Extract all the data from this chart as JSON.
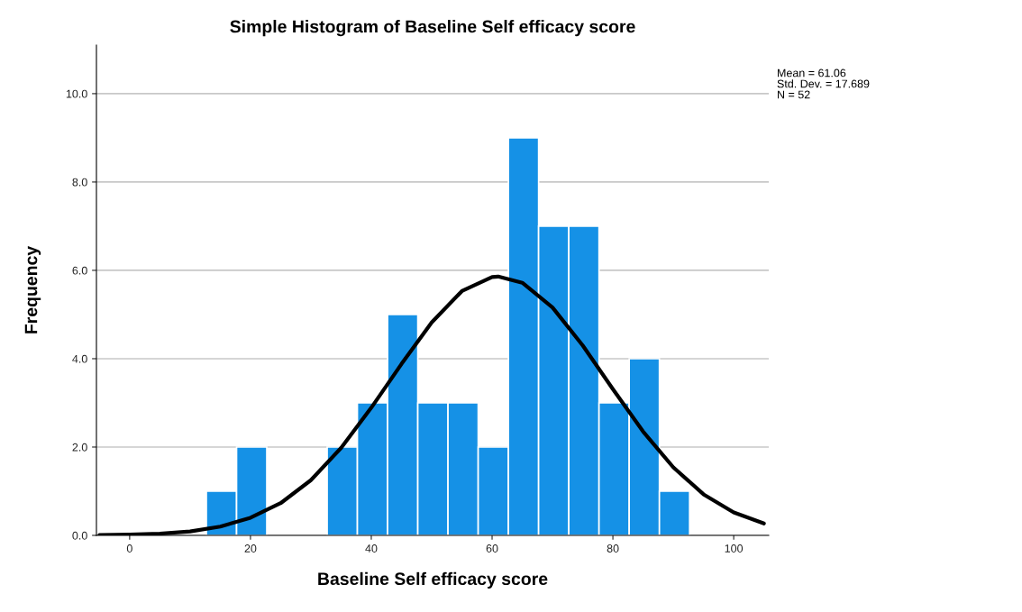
{
  "chart_data": {
    "type": "histogram",
    "title": "Simple Histogram of Baseline Self efficacy score",
    "xlabel": "Baseline Self efficacy score",
    "ylabel": "Frequency",
    "bins": [
      12.7,
      17.7,
      22.7,
      27.7,
      32.7,
      37.7,
      42.7,
      47.7,
      52.7,
      57.7,
      62.7,
      67.7,
      72.7,
      77.7,
      82.7,
      87.7,
      92.7
    ],
    "values": [
      1,
      2,
      0,
      0,
      2,
      3,
      5,
      3,
      3,
      2,
      9,
      7,
      7,
      3,
      4,
      1
    ],
    "color": "#1591e6",
    "series": [
      {
        "type": "line",
        "color": "#000000",
        "x": [
          -5,
          0,
          5,
          10,
          15,
          20,
          25,
          30,
          35,
          40,
          45,
          50,
          55,
          60,
          61,
          65,
          70,
          75,
          80,
          85,
          90,
          95,
          100,
          105
        ],
        "values": [
          0.01,
          0.02,
          0.04,
          0.09,
          0.2,
          0.4,
          0.73,
          1.25,
          1.98,
          2.89,
          3.88,
          4.82,
          5.53,
          5.85,
          5.86,
          5.72,
          5.16,
          4.3,
          3.31,
          2.35,
          1.54,
          0.93,
          0.52,
          0.27
        ]
      }
    ],
    "xlim": [
      -5.5,
      105.8
    ],
    "xticks": [
      0,
      20,
      40,
      60,
      80,
      100
    ],
    "ylim": [
      0,
      11.1
    ],
    "yticks": [
      {
        "value": 0,
        "label": "0.0"
      },
      {
        "value": 2,
        "label": "2.0"
      },
      {
        "value": 4,
        "label": "4.0"
      },
      {
        "value": 6,
        "label": "6.0"
      },
      {
        "value": 8,
        "label": "8.0"
      },
      {
        "value": 10,
        "label": "10.0"
      }
    ],
    "grid": "y",
    "annotations": [
      "Mean = 61.06",
      "Std. Dev. = 17.689",
      "N = 52"
    ]
  }
}
